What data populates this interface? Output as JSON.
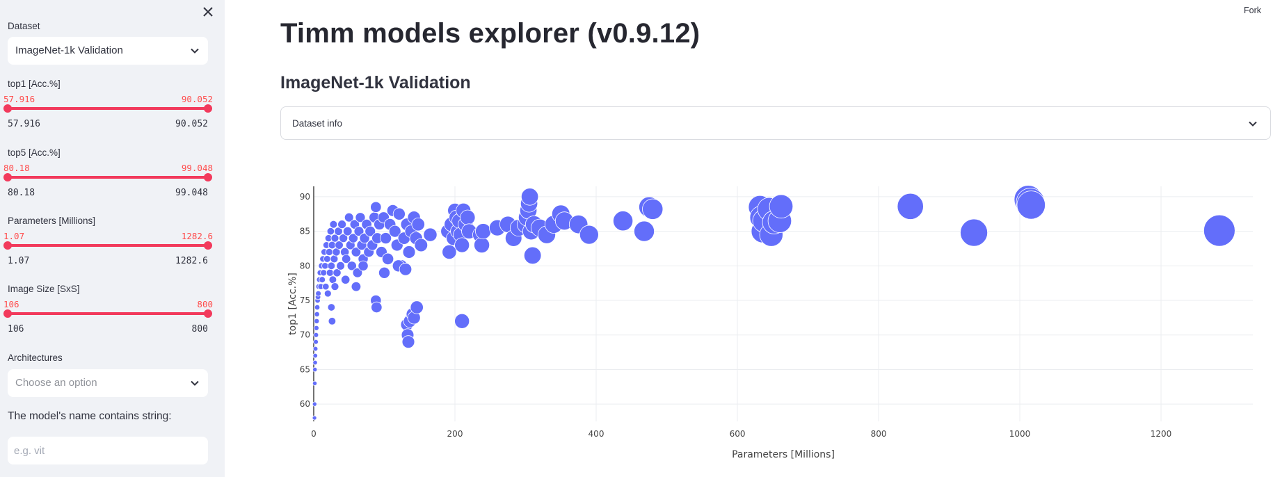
{
  "sidebar": {
    "close_icon": "close-icon",
    "dataset": {
      "label": "Dataset",
      "value": "ImageNet-1k Validation"
    },
    "sliders": [
      {
        "label": "top1 [Acc.%]",
        "min": "57.916",
        "max": "90.052"
      },
      {
        "label": "top5 [Acc.%]",
        "min": "80.18",
        "max": "99.048"
      },
      {
        "label": "Parameters [Millions]",
        "min": "1.07",
        "max": "1282.6"
      },
      {
        "label": "Image Size [SxS]",
        "min": "106",
        "max": "800"
      }
    ],
    "architectures": {
      "label": "Architectures",
      "placeholder": "Choose an option"
    },
    "name_filter": {
      "label": "The model's name contains string:",
      "placeholder": "e.g. vit"
    }
  },
  "header": {
    "fork": "Fork"
  },
  "main": {
    "title": "Timm models explorer (v0.9.12)",
    "subheader": "ImageNet-1k Validation",
    "expander_label": "Dataset info"
  },
  "colors": {
    "accent": "#f23a5c",
    "marker": "#636efa",
    "sidebar_bg": "#f0f2f6"
  },
  "chart_data": {
    "type": "scatter",
    "title": "",
    "xlabel": "Parameters [Millions]",
    "ylabel": "top1 [Acc.%]",
    "xlim": [
      0,
      1330
    ],
    "ylim": [
      57.5,
      91.5
    ],
    "xticks": [
      0,
      200,
      400,
      600,
      800,
      1000,
      1200
    ],
    "yticks": [
      60,
      65,
      70,
      75,
      80,
      85,
      90
    ],
    "marker_size_encodes": "Parameters [Millions]",
    "points": [
      [
        1.1,
        58
      ],
      [
        1.3,
        60
      ],
      [
        1.5,
        63
      ],
      [
        1.7,
        65
      ],
      [
        2,
        66
      ],
      [
        2.2,
        67
      ],
      [
        2.5,
        68
      ],
      [
        3,
        69
      ],
      [
        3.3,
        70
      ],
      [
        3.8,
        71
      ],
      [
        4.2,
        72
      ],
      [
        4.6,
        73
      ],
      [
        5,
        74
      ],
      [
        5.5,
        75
      ],
      [
        6,
        75.5
      ],
      [
        6.5,
        76
      ],
      [
        7,
        77
      ],
      [
        8,
        78
      ],
      [
        9,
        79
      ],
      [
        10,
        77
      ],
      [
        11,
        80
      ],
      [
        12,
        78
      ],
      [
        13,
        81
      ],
      [
        14,
        79
      ],
      [
        15,
        82
      ],
      [
        16,
        80
      ],
      [
        17,
        77
      ],
      [
        18,
        83
      ],
      [
        19,
        81
      ],
      [
        20,
        76
      ],
      [
        21,
        84
      ],
      [
        22,
        82
      ],
      [
        23,
        79
      ],
      [
        24,
        85
      ],
      [
        25,
        80
      ],
      [
        26,
        83
      ],
      [
        27,
        78
      ],
      [
        28,
        86
      ],
      [
        29,
        81
      ],
      [
        30,
        84
      ],
      [
        32,
        82
      ],
      [
        33,
        79
      ],
      [
        35,
        85
      ],
      [
        36,
        83
      ],
      [
        38,
        80
      ],
      [
        40,
        86
      ],
      [
        42,
        84
      ],
      [
        44,
        82
      ],
      [
        46,
        81
      ],
      [
        48,
        85
      ],
      [
        50,
        87
      ],
      [
        52,
        83
      ],
      [
        54,
        80
      ],
      [
        56,
        84
      ],
      [
        58,
        86
      ],
      [
        60,
        82
      ],
      [
        62,
        79
      ],
      [
        64,
        85
      ],
      [
        66,
        87
      ],
      [
        68,
        83
      ],
      [
        70,
        81
      ],
      [
        72,
        84
      ],
      [
        75,
        86
      ],
      [
        78,
        82
      ],
      [
        80,
        85
      ],
      [
        83,
        83
      ],
      [
        86,
        87
      ],
      [
        88,
        88.5
      ],
      [
        90,
        84
      ],
      [
        93,
        86
      ],
      [
        96,
        82
      ],
      [
        99,
        87
      ],
      [
        102,
        84
      ],
      [
        105,
        81
      ],
      [
        108,
        86
      ],
      [
        112,
        88
      ],
      [
        115,
        85
      ],
      [
        118,
        83
      ],
      [
        121,
        87.5
      ],
      [
        124,
        80
      ],
      [
        128,
        84
      ],
      [
        132,
        86
      ],
      [
        135,
        82
      ],
      [
        138,
        85
      ],
      [
        142,
        87
      ],
      [
        145,
        84
      ],
      [
        148,
        86
      ],
      [
        152,
        83
      ],
      [
        88,
        75
      ],
      [
        89,
        74
      ],
      [
        25,
        74
      ],
      [
        26,
        72
      ],
      [
        30,
        77
      ],
      [
        45,
        78
      ],
      [
        60,
        77
      ],
      [
        70,
        80
      ],
      [
        100,
        79
      ],
      [
        120,
        80
      ],
      [
        130,
        79.5
      ],
      [
        132,
        71.5
      ],
      [
        133,
        70
      ],
      [
        134,
        69
      ],
      [
        136,
        72
      ],
      [
        140,
        73
      ],
      [
        142,
        72.5
      ],
      [
        146,
        74
      ],
      [
        210,
        72
      ],
      [
        310,
        81.5
      ],
      [
        165,
        84.5
      ],
      [
        190,
        85
      ],
      [
        195,
        86
      ],
      [
        198,
        84
      ],
      [
        200,
        88
      ],
      [
        202,
        87
      ],
      [
        204,
        85
      ],
      [
        206,
        86.5
      ],
      [
        208,
        84.5
      ],
      [
        210,
        83
      ],
      [
        212,
        88
      ],
      [
        215,
        86
      ],
      [
        218,
        87
      ],
      [
        220,
        85
      ],
      [
        192,
        82
      ],
      [
        236,
        84.5
      ],
      [
        238,
        83
      ],
      [
        240,
        85
      ],
      [
        260,
        85.5
      ],
      [
        275,
        86
      ],
      [
        283,
        84
      ],
      [
        290,
        85.5
      ],
      [
        300,
        86
      ],
      [
        302,
        87
      ],
      [
        304,
        88
      ],
      [
        305,
        89
      ],
      [
        306,
        90
      ],
      [
        308,
        85
      ],
      [
        312,
        86
      ],
      [
        320,
        85.5
      ],
      [
        330,
        84.5
      ],
      [
        340,
        86
      ],
      [
        350,
        87.5
      ],
      [
        355,
        86.5
      ],
      [
        375,
        86
      ],
      [
        390,
        84.5
      ],
      [
        438,
        86.5
      ],
      [
        468,
        85
      ],
      [
        475,
        88.5
      ],
      [
        480,
        88.2
      ],
      [
        632,
        88.5
      ],
      [
        634,
        87
      ],
      [
        636,
        85
      ],
      [
        638,
        86.5
      ],
      [
        645,
        88.2
      ],
      [
        648,
        84.5
      ],
      [
        652,
        86.3
      ],
      [
        660,
        86.5
      ],
      [
        662,
        88.6
      ],
      [
        845,
        88.6
      ],
      [
        935,
        84.8
      ],
      [
        1012,
        89.6
      ],
      [
        1015,
        89.2
      ],
      [
        1016,
        88.8
      ],
      [
        1282.6,
        85.1
      ]
    ]
  }
}
